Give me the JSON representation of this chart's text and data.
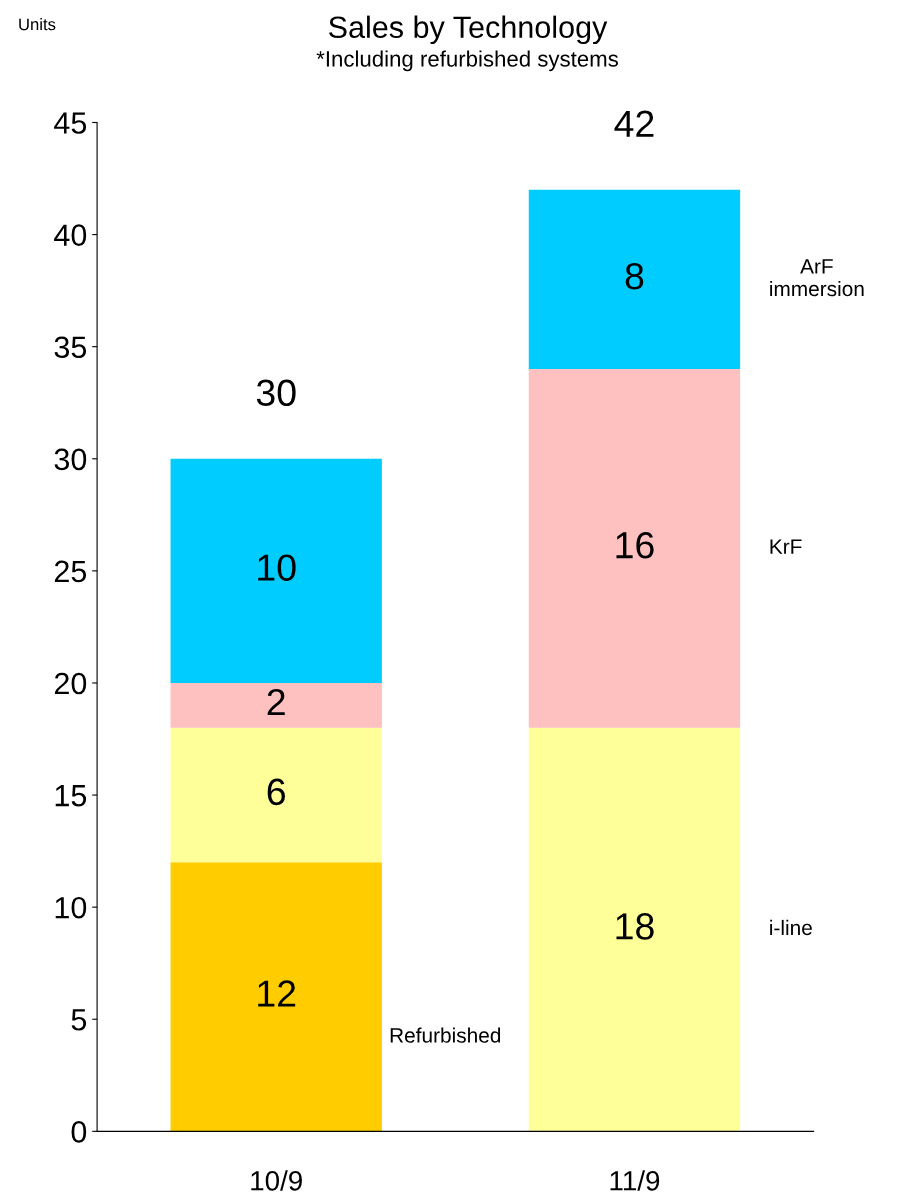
{
  "chart_data": {
    "type": "bar",
    "title": "Sales by Technology",
    "subtitle": "*Including refurbished systems",
    "ylabel": "Units",
    "stacked": true,
    "categories": [
      "10/9",
      "11/9"
    ],
    "series": [
      {
        "name": "Refurbished",
        "color": "#ffcc00",
        "values": [
          12,
          0
        ],
        "value_labels": [
          "12",
          null
        ]
      },
      {
        "name": "i-line",
        "color": "#ffff99",
        "values": [
          6,
          18
        ],
        "value_labels": [
          "6",
          "18"
        ]
      },
      {
        "name": "KrF",
        "color": "#ffc0c0",
        "values": [
          2,
          16
        ],
        "value_labels": [
          "2",
          "16"
        ]
      },
      {
        "name": "ArF\nimmersion",
        "color": "#00ccff",
        "values": [
          10,
          8
        ],
        "value_labels": [
          "10",
          "8"
        ]
      }
    ],
    "totals": [
      "30",
      "42"
    ],
    "ylim": [
      0,
      45
    ],
    "yticks": [
      0,
      5,
      10,
      15,
      20,
      25,
      30,
      35,
      40,
      45
    ],
    "grid": false
  }
}
